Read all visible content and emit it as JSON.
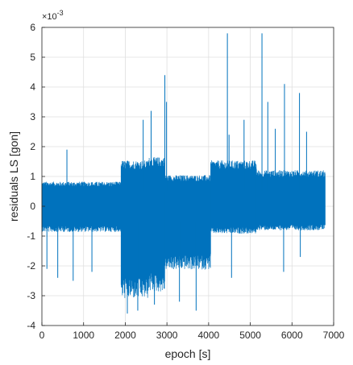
{
  "chart_data": {
    "type": "line",
    "xlabel": "epoch [s]",
    "ylabel": "residuals LS [gon]",
    "xlim": [
      0,
      7000
    ],
    "ylim": [
      -4,
      6
    ],
    "x_ticks": [
      "0",
      "1000",
      "2000",
      "3000",
      "4000",
      "5000",
      "6000",
      "7000"
    ],
    "y_ticks": [
      "-4",
      "-3",
      "-2",
      "-1",
      "0",
      "1",
      "2",
      "3",
      "4",
      "5",
      "6"
    ],
    "y_multiplier_base": "×10",
    "y_multiplier_exp": "-3",
    "grid": true,
    "series": [
      {
        "color": "#0072BD",
        "segments": [
          {
            "x_start": 0,
            "x_end": 1900,
            "upper": 0.75,
            "lower": -0.75
          },
          {
            "x_start": 1900,
            "x_end": 2550,
            "upper": 1.4,
            "lower": -2.7
          },
          {
            "x_start": 2550,
            "x_end": 2950,
            "upper": 1.5,
            "lower": -2.5
          },
          {
            "x_start": 2950,
            "x_end": 4050,
            "upper": 0.95,
            "lower": -1.85
          },
          {
            "x_start": 4050,
            "x_end": 5150,
            "upper": 1.4,
            "lower": -0.8
          },
          {
            "x_start": 5150,
            "x_end": 6800,
            "upper": 1.1,
            "lower": -0.7
          }
        ],
        "spikes": [
          {
            "x": 600,
            "y": 1.9
          },
          {
            "x": 2430,
            "y": 2.9
          },
          {
            "x": 2620,
            "y": 3.2
          },
          {
            "x": 2950,
            "y": 4.4
          },
          {
            "x": 2990,
            "y": 3.5
          },
          {
            "x": 4450,
            "y": 5.8
          },
          {
            "x": 4490,
            "y": 2.4
          },
          {
            "x": 4850,
            "y": 2.9
          },
          {
            "x": 5280,
            "y": 5.8
          },
          {
            "x": 5420,
            "y": 3.5
          },
          {
            "x": 5600,
            "y": 2.6
          },
          {
            "x": 5820,
            "y": 4.1
          },
          {
            "x": 6180,
            "y": 3.8
          },
          {
            "x": 6350,
            "y": 2.5
          },
          {
            "x": 120,
            "y": -2.1
          },
          {
            "x": 380,
            "y": -2.4
          },
          {
            "x": 750,
            "y": -2.5
          },
          {
            "x": 1200,
            "y": -2.2
          },
          {
            "x": 2050,
            "y": -3.6
          },
          {
            "x": 2300,
            "y": -3.5
          },
          {
            "x": 2700,
            "y": -3.3
          },
          {
            "x": 3300,
            "y": -3.2
          },
          {
            "x": 3700,
            "y": -3.5
          },
          {
            "x": 4550,
            "y": -2.4
          },
          {
            "x": 5800,
            "y": -2.2
          },
          {
            "x": 6200,
            "y": -1.7
          }
        ]
      }
    ]
  }
}
